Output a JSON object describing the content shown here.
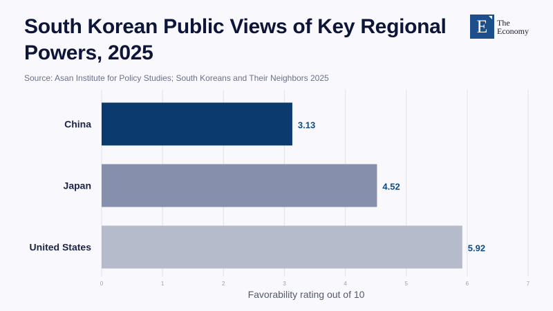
{
  "header": {
    "title": "South Korean Public Views of Key Regional Powers, 2025",
    "source": "Source: Asan Institute for Policy Studies; South Koreans and Their Neighbors 2025"
  },
  "logo": {
    "letter": "E",
    "line1": "The",
    "line2": "Economy"
  },
  "chart_data": {
    "type": "bar",
    "orientation": "horizontal",
    "title": "South Korean Public Views of Key Regional Powers, 2025",
    "categories": [
      "China",
      "Japan",
      "United States"
    ],
    "values": [
      3.13,
      4.52,
      5.92
    ],
    "value_labels": [
      "3.13",
      "4.52",
      "5.92"
    ],
    "colors": [
      "#0a3a6e",
      "#8690ad",
      "#b5bbcb"
    ],
    "xlabel": "Favorability rating out of 10",
    "ylabel": "",
    "xlim": [
      0,
      7
    ],
    "xticks": [
      0,
      1,
      2,
      3,
      4,
      5,
      6,
      7
    ],
    "grid": true,
    "legend": "none"
  }
}
